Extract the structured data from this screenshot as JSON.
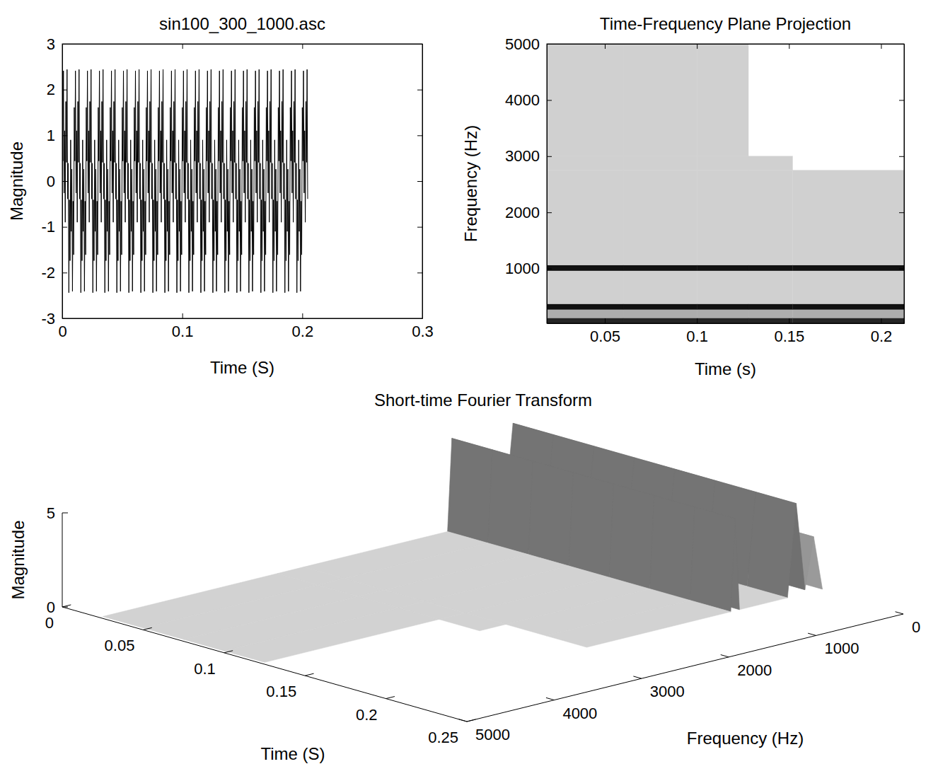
{
  "chart_data": [
    {
      "type": "line",
      "title": "sin100_300_1000.asc",
      "x_label": "Time (S)",
      "y_label": "Magnitude",
      "color": "#000000",
      "xlim": [
        0,
        0.3
      ],
      "ylim": [
        -3,
        3
      ],
      "xticks": [
        0,
        0.1,
        0.2,
        0.3
      ],
      "yticks": [
        -3,
        -2,
        -1,
        0,
        1,
        2,
        3
      ],
      "x": [
        0,
        0.0005,
        0.001,
        0.0015,
        0.002,
        0.0025,
        0.003,
        0.0035,
        0.004,
        0.0045,
        0.005,
        0.0055,
        0.006,
        0.0065,
        0.007,
        0.0075,
        0.008,
        0.0085,
        0.009,
        0.0095,
        0.01,
        0.0105,
        0.011,
        0.0115,
        0.012,
        0.0125,
        0.013,
        0.0135,
        0.014,
        0.0145,
        0.015,
        0.0155,
        0.016,
        0.0165,
        0.017,
        0.0175,
        0.018,
        0.0185,
        0.019,
        0.0195,
        0.02,
        0.0205,
        0.021,
        0.0215,
        0.022,
        0.0225,
        0.023,
        0.0235,
        0.024,
        0.0245,
        0.025,
        0.0255,
        0.026,
        0.0265,
        0.027,
        0.0275,
        0.028,
        0.0285,
        0.029,
        0.0295,
        0.03,
        0.0305,
        0.031,
        0.0315,
        0.032,
        0.0325,
        0.033,
        0.0335,
        0.034,
        0.0345,
        0.035,
        0.0355,
        0.036,
        0.0365,
        0.037,
        0.0375,
        0.038,
        0.0385,
        0.039,
        0.0395,
        0.04,
        0.0405,
        0.041,
        0.0415,
        0.042,
        0.0425,
        0.043,
        0.0435,
        0.044,
        0.0445,
        0.045,
        0.0455,
        0.046,
        0.0465,
        0.047,
        0.0475,
        0.048,
        0.0485,
        0.049,
        0.0495,
        0.05,
        0.0505,
        0.051,
        0.0515,
        0.052,
        0.0525,
        0.053,
        0.0535,
        0.054,
        0.0545,
        0.055,
        0.0555,
        0.056,
        0.0565,
        0.057,
        0.0575,
        0.058,
        0.0585,
        0.059,
        0.0595,
        0.06,
        0.0605,
        0.061,
        0.0615,
        0.062,
        0.0625,
        0.063,
        0.0635,
        0.064,
        0.0645,
        0.065,
        0.0655,
        0.066,
        0.0665,
        0.067,
        0.0675,
        0.068,
        0.0685,
        0.069,
        0.0695,
        0.07,
        0.0705,
        0.071,
        0.0715,
        0.072,
        0.0725,
        0.073,
        0.0735,
        0.074,
        0.0745,
        0.075,
        0.0755,
        0.076,
        0.0765,
        0.077,
        0.0775,
        0.078,
        0.0785,
        0.079,
        0.0795,
        0.08,
        0.0805,
        0.081,
        0.0815,
        0.082,
        0.0825,
        0.083,
        0.0835,
        0.084,
        0.0845,
        0.085,
        0.0855,
        0.086,
        0.0865,
        0.087,
        0.0875,
        0.088,
        0.0885,
        0.089,
        0.0895,
        0.09,
        0.0905,
        0.091,
        0.0915,
        0.092,
        0.0925,
        0.093,
        0.0935,
        0.094,
        0.0945,
        0.095,
        0.0955,
        0.096,
        0.0965,
        0.097,
        0.0975,
        0.098,
        0.0985,
        0.099,
        0.0995,
        0.1,
        0.1005,
        0.101,
        0.1015,
        0.102,
        0.1025,
        0.103,
        0.1035,
        0.104,
        0.1045,
        0.105,
        0.1055,
        0.106,
        0.1065,
        0.107,
        0.1075,
        0.108,
        0.1085,
        0.109,
        0.1095,
        0.11,
        0.1105,
        0.111,
        0.1115,
        0.112,
        0.1125,
        0.113,
        0.1135,
        0.114,
        0.1145,
        0.115,
        0.1155,
        0.116,
        0.1165,
        0.117,
        0.1175,
        0.118,
        0.1185,
        0.119,
        0.1195,
        0.12,
        0.1205,
        0.121,
        0.1215,
        0.122,
        0.1225,
        0.123,
        0.1235,
        0.124,
        0.1245,
        0.125,
        0.1255,
        0.126,
        0.1265,
        0.127,
        0.1275,
        0.128,
        0.1285,
        0.129,
        0.1295,
        0.13,
        0.1305,
        0.131,
        0.1315,
        0.132,
        0.1325,
        0.133,
        0.1335,
        0.134,
        0.1345,
        0.135,
        0.1355,
        0.136,
        0.1365,
        0.137,
        0.1375,
        0.138,
        0.1385,
        0.139,
        0.1395,
        0.14,
        0.1405,
        0.141,
        0.1415,
        0.142,
        0.1425,
        0.143,
        0.1435,
        0.144,
        0.1445,
        0.145,
        0.1455,
        0.146,
        0.1465,
        0.147,
        0.1475,
        0.148,
        0.1485,
        0.149,
        0.1495,
        0.15,
        0.1505,
        0.151,
        0.1515,
        0.152,
        0.1525,
        0.153,
        0.1535,
        0.154,
        0.1545,
        0.155,
        0.1555,
        0.156,
        0.1565,
        0.157,
        0.1575,
        0.158,
        0.1585,
        0.159,
        0.1595,
        0.16,
        0.1605,
        0.161,
        0.1615,
        0.162,
        0.1625,
        0.163,
        0.1635,
        0.164,
        0.1645,
        0.165,
        0.1655,
        0.166,
        0.1665,
        0.167,
        0.1675,
        0.168,
        0.1685,
        0.169,
        0.1695,
        0.17,
        0.1705,
        0.171,
        0.1715,
        0.172,
        0.1725,
        0.173,
        0.1735,
        0.174,
        0.1745,
        0.175,
        0.1755,
        0.176,
        0.1765,
        0.177,
        0.1775,
        0.178,
        0.1785,
        0.179,
        0.1795,
        0.18,
        0.1805,
        0.181,
        0.1815,
        0.182,
        0.1825,
        0.183,
        0.1835,
        0.184,
        0.1845,
        0.185,
        0.1855,
        0.186,
        0.1865,
        0.187,
        0.1875,
        0.188,
        0.1885,
        0.189,
        0.1895,
        0.19,
        0.1905,
        0.191,
        0.1915,
        0.192,
        0.1925,
        0.193,
        0.1935,
        0.194,
        0.1945,
        0.195,
        0.1955,
        0.196,
        0.1965,
        0.197,
        0.1975,
        0.198,
        0.1985,
        0.199,
        0.1995,
        0.2,
        0.2005,
        0.201,
        0.2015,
        0.202,
        0.2025,
        0.203,
        0.2035,
        0.204,
        0.2045
      ],
      "values": [
        1.61,
        0.44,
        2.41,
        -0.26,
        1.1,
        -0.9,
        1.74,
        0.41,
        2.44,
        -0.39,
        0.39,
        -2.44,
        -0.41,
        -1.74,
        0.9,
        -1.1,
        0.26,
        -2.41,
        -0.44,
        -1.61,
        1.61,
        0.44,
        2.41,
        -0.26,
        1.1,
        -0.9,
        1.74,
        0.41,
        2.44,
        -0.39,
        0.39,
        -2.44,
        -0.41,
        -1.74,
        0.9,
        -1.1,
        0.26,
        -2.41,
        -0.44,
        -1.61,
        1.61,
        0.44,
        2.41,
        -0.26,
        1.1,
        -0.9,
        1.74,
        0.41,
        2.44,
        -0.39,
        0.39,
        -2.44,
        -0.41,
        -1.74,
        0.9,
        -1.1,
        0.26,
        -2.41,
        -0.44,
        -1.61,
        1.61,
        0.44,
        2.41,
        -0.26,
        1.1,
        -0.9,
        1.74,
        0.41,
        2.44,
        -0.39,
        0.39,
        -2.44,
        -0.41,
        -1.74,
        0.9,
        -1.1,
        0.26,
        -2.41,
        -0.44,
        -1.61,
        1.61,
        0.44,
        2.41,
        -0.26,
        1.1,
        -0.9,
        1.74,
        0.41,
        2.44,
        -0.39,
        0.39,
        -2.44,
        -0.41,
        -1.74,
        0.9,
        -1.1,
        0.26,
        -2.41,
        -0.44,
        -1.61,
        1.61,
        0.44,
        2.41,
        -0.26,
        1.1,
        -0.9,
        1.74,
        0.41,
        2.44,
        -0.39,
        0.39,
        -2.44,
        -0.41,
        -1.74,
        0.9,
        -1.1,
        0.26,
        -2.41,
        -0.44,
        -1.61,
        1.61,
        0.44,
        2.41,
        -0.26,
        1.1,
        -0.9,
        1.74,
        0.41,
        2.44,
        -0.39,
        0.39,
        -2.44,
        -0.41,
        -1.74,
        0.9,
        -1.1,
        0.26,
        -2.41,
        -0.44,
        -1.61,
        1.61,
        0.44,
        2.41,
        -0.26,
        1.1,
        -0.9,
        1.74,
        0.41,
        2.44,
        -0.39,
        0.39,
        -2.44,
        -0.41,
        -1.74,
        0.9,
        -1.1,
        0.26,
        -2.41,
        -0.44,
        -1.61,
        1.61,
        0.44,
        2.41,
        -0.26,
        1.1,
        -0.9,
        1.74,
        0.41,
        2.44,
        -0.39,
        0.39,
        -2.44,
        -0.41,
        -1.74,
        0.9,
        -1.1,
        0.26,
        -2.41,
        -0.44,
        -1.61,
        1.61,
        0.44,
        2.41,
        -0.26,
        1.1,
        -0.9,
        1.74,
        0.41,
        2.44,
        -0.39,
        0.39,
        -2.44,
        -0.41,
        -1.74,
        0.9,
        -1.1,
        0.26,
        -2.41,
        -0.44,
        -1.61,
        1.61,
        0.44,
        2.41,
        -0.26,
        1.1,
        -0.9,
        1.74,
        0.41,
        2.44,
        -0.39,
        0.39,
        -2.44,
        -0.41,
        -1.74,
        0.9,
        -1.1,
        0.26,
        -2.41,
        -0.44,
        -1.61,
        1.61,
        0.44,
        2.41,
        -0.26,
        1.1,
        -0.9,
        1.74,
        0.41,
        2.44,
        -0.39,
        0.39,
        -2.44,
        -0.41,
        -1.74,
        0.9,
        -1.1,
        0.26,
        -2.41,
        -0.44,
        -1.61,
        1.61,
        0.44,
        2.41,
        -0.26,
        1.1,
        -0.9,
        1.74,
        0.41,
        2.44,
        -0.39,
        0.39,
        -2.44,
        -0.41,
        -1.74,
        0.9,
        -1.1,
        0.26,
        -2.41,
        -0.44,
        -1.61,
        1.61,
        0.44,
        2.41,
        -0.26,
        1.1,
        -0.9,
        1.74,
        0.41,
        2.44,
        -0.39,
        0.39,
        -2.44,
        -0.41,
        -1.74,
        0.9,
        -1.1,
        0.26,
        -2.41,
        -0.44,
        -1.61,
        1.61,
        0.44,
        2.41,
        -0.26,
        1.1,
        -0.9,
        1.74,
        0.41,
        2.44,
        -0.39,
        0.39,
        -2.44,
        -0.41,
        -1.74,
        0.9,
        -1.1,
        0.26,
        -2.41,
        -0.44,
        -1.61,
        1.61,
        0.44,
        2.41,
        -0.26,
        1.1,
        -0.9,
        1.74,
        0.41,
        2.44,
        -0.39,
        0.39,
        -2.44,
        -0.41,
        -1.74,
        0.9,
        -1.1,
        0.26,
        -2.41,
        -0.44,
        -1.61,
        1.61,
        0.44,
        2.41,
        -0.26,
        1.1,
        -0.9,
        1.74,
        0.41,
        2.44,
        -0.39,
        0.39,
        -2.44,
        -0.41,
        -1.74,
        0.9,
        -1.1,
        0.26,
        -2.41,
        -0.44,
        -1.61,
        1.61,
        0.44,
        2.41,
        -0.26,
        1.1,
        -0.9,
        1.74,
        0.41,
        2.44,
        -0.39,
        0.39,
        -2.44,
        -0.41,
        -1.74,
        0.9,
        -1.1,
        0.26,
        -2.41,
        -0.44,
        -1.61,
        1.61,
        0.44,
        2.41,
        -0.26,
        1.1,
        -0.9,
        1.74,
        0.41,
        2.44,
        -0.39,
        0.39,
        -2.44,
        -0.41,
        -1.74,
        0.9,
        -1.1,
        0.26,
        -2.41,
        -0.44,
        -1.61,
        1.61,
        0.44,
        2.41,
        -0.26,
        1.1,
        -0.9,
        1.74,
        0.41,
        2.44,
        -0.39,
        0.39,
        -2.44,
        -0.41,
        -1.74,
        0.9,
        -1.1,
        0.26,
        -2.41,
        -0.44,
        -1.61,
        1.61,
        0.44,
        2.41,
        -0.26,
        1.1,
        -0.9,
        1.74,
        0.41,
        2.44,
        -0.39
      ]
    },
    {
      "type": "heatmap",
      "title": "Time-Frequency Plane Projection",
      "x_label": "Time (s)",
      "y_label": "Frequency (Hz)",
      "xlim": [
        0.0185,
        0.2125
      ],
      "ylim": [
        25,
        5000
      ],
      "xticks": [
        0.05,
        0.1,
        0.15,
        0.2
      ],
      "yticks": [
        1000,
        2000,
        3000,
        4000,
        5000
      ],
      "x_edges": [
        0.0185,
        0.06,
        0.1,
        0.128,
        0.152,
        0.2125
      ],
      "y_edges": [
        25,
        120,
        270,
        370,
        960,
        1060,
        2750,
        3000,
        5000
      ],
      "cells": [
        [
          4.5,
          4.5,
          4.5,
          4.5,
          4.5
        ],
        [
          1,
          1,
          1,
          1,
          1
        ],
        [
          5,
          5,
          5,
          5,
          5
        ],
        [
          0.1,
          0.1,
          0.1,
          0.1,
          0.1
        ],
        [
          5,
          5,
          5,
          5,
          5
        ],
        [
          0.1,
          0.1,
          0.1,
          0.1,
          0.1
        ],
        [
          0.1,
          0.1,
          0.1,
          0.1,
          null
        ],
        [
          0.1,
          0.1,
          0.1,
          null,
          null
        ]
      ]
    },
    {
      "type": "surface",
      "title": "Short-time Fourier Transform",
      "x_label": "Time (S)",
      "y_label": "Frequency (Hz)",
      "z_label": "Magnitude",
      "xlim": [
        0,
        0.25
      ],
      "ylim": [
        0,
        5000
      ],
      "zlim": [
        0,
        5
      ],
      "xticks": [
        0,
        0.05,
        0.1,
        0.15,
        0.2,
        0.25
      ],
      "yticks": [
        0,
        1000,
        2000,
        3000,
        4000,
        5000
      ],
      "zticks": [
        0,
        5
      ],
      "x": [
        0.025,
        0.05,
        0.075,
        0.1,
        0.125,
        0.15,
        0.175,
        0.2
      ],
      "y": [
        0,
        100,
        200,
        300,
        400,
        950,
        1000,
        1050,
        2700,
        3000,
        5000
      ],
      "z": [
        [
          0.1,
          0.1,
          0.1,
          0.1,
          0.1,
          0.1,
          0.1,
          0.1
        ],
        [
          3,
          3,
          3,
          3,
          3,
          3,
          3,
          3
        ],
        [
          0.3,
          0.3,
          0.3,
          0.3,
          0.3,
          0.3,
          0.3,
          0.3
        ],
        [
          5,
          5,
          5,
          5,
          5,
          5,
          5,
          5
        ],
        [
          0.1,
          0.1,
          0.1,
          0.1,
          0.1,
          0.1,
          0.1,
          0.1
        ],
        [
          0.1,
          0.1,
          0.1,
          0.1,
          0.1,
          0.1,
          0.1,
          0.1
        ],
        [
          5,
          5,
          5,
          5,
          5,
          5,
          5,
          5
        ],
        [
          0.1,
          0.1,
          0.1,
          0.1,
          0.1,
          0.1,
          0.1,
          0.1
        ],
        [
          0.1,
          0.1,
          0.1,
          0.1,
          0.1,
          0.1,
          0.1,
          0.1
        ],
        [
          0.1,
          0.1,
          0.1,
          0.1,
          0.1,
          0.1,
          null,
          null
        ],
        [
          0.1,
          0.1,
          0.1,
          0.1,
          0.1,
          null,
          null,
          null
        ]
      ]
    }
  ]
}
